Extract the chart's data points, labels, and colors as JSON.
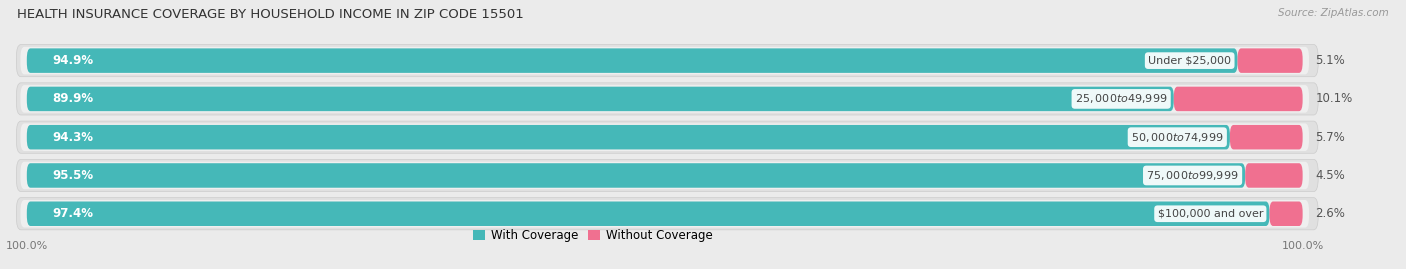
{
  "title": "HEALTH INSURANCE COVERAGE BY HOUSEHOLD INCOME IN ZIP CODE 15501",
  "source": "Source: ZipAtlas.com",
  "categories": [
    "Under $25,000",
    "$25,000 to $49,999",
    "$50,000 to $74,999",
    "$75,000 to $99,999",
    "$100,000 and over"
  ],
  "with_coverage": [
    94.9,
    89.9,
    94.3,
    95.5,
    97.4
  ],
  "without_coverage": [
    5.1,
    10.1,
    5.7,
    4.5,
    2.6
  ],
  "color_with": "#45b8b8",
  "color_without": "#f07090",
  "bg_color": "#ebebeb",
  "row_bg_color": "#d8d8d8",
  "title_fontsize": 9.5,
  "label_fontsize": 8.5,
  "pct_fontsize": 8.5,
  "legend_fontsize": 8.5,
  "axis_label_fontsize": 8
}
